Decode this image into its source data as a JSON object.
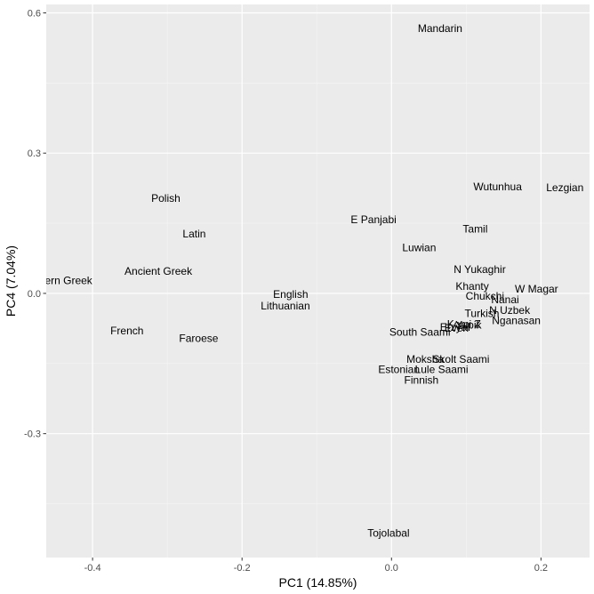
{
  "chart_data": {
    "type": "scatter",
    "xlabel": "PC1 (14.85%)",
    "ylabel": "PC4 (7.04%)",
    "xlim": [
      -0.462,
      0.265
    ],
    "ylim": [
      -0.565,
      0.618
    ],
    "xticks": [
      -0.4,
      -0.2,
      0.0,
      0.2
    ],
    "xtick_labels": [
      "-0.4",
      "-0.2",
      "0.0",
      "0.2"
    ],
    "yticks": [
      -0.3,
      0.0,
      0.3,
      0.6
    ],
    "ytick_labels": [
      "-0.3",
      "0.0",
      "0.3",
      "0.6"
    ],
    "grid": true,
    "points": [
      {
        "label": "Mandarin",
        "x": 0.065,
        "y": 0.567
      },
      {
        "label": "Wutunhua",
        "x": 0.142,
        "y": 0.228
      },
      {
        "label": "Lezgian",
        "x": 0.232,
        "y": 0.226
      },
      {
        "label": "Polish",
        "x": -0.302,
        "y": 0.203
      },
      {
        "label": "E Panjabi",
        "x": -0.024,
        "y": 0.158
      },
      {
        "label": "Latin",
        "x": -0.264,
        "y": 0.127
      },
      {
        "label": "Tamil",
        "x": 0.112,
        "y": 0.138
      },
      {
        "label": "Luwian",
        "x": 0.037,
        "y": 0.098
      },
      {
        "label": "N Yukaghir",
        "x": 0.118,
        "y": 0.051
      },
      {
        "label": "Ancient Greek",
        "x": -0.312,
        "y": 0.047
      },
      {
        "label": "Modern Greek",
        "x": -0.446,
        "y": 0.027
      },
      {
        "label": "Khanty",
        "x": 0.108,
        "y": 0.015
      },
      {
        "label": "W Magar",
        "x": 0.194,
        "y": 0.009
      },
      {
        "label": "English",
        "x": -0.135,
        "y": -0.002
      },
      {
        "label": "Chukchi",
        "x": 0.125,
        "y": -0.006
      },
      {
        "label": "Nanai",
        "x": 0.152,
        "y": -0.013
      },
      {
        "label": "Lithuanian",
        "x": -0.142,
        "y": -0.027
      },
      {
        "label": "N Uzbek",
        "x": 0.158,
        "y": -0.036
      },
      {
        "label": "Turkish",
        "x": 0.121,
        "y": -0.043
      },
      {
        "label": "Nganasan",
        "x": 0.167,
        "y": -0.058
      },
      {
        "label": "Komi Z",
        "x": 0.097,
        "y": -0.066
      },
      {
        "label": "Yupik",
        "x": 0.103,
        "y": -0.068
      },
      {
        "label": "Erzya",
        "x": 0.083,
        "y": -0.072
      },
      {
        "label": "Even",
        "x": 0.087,
        "y": -0.074
      },
      {
        "label": "French",
        "x": -0.354,
        "y": -0.08
      },
      {
        "label": "South Saami",
        "x": 0.038,
        "y": -0.083
      },
      {
        "label": "Faroese",
        "x": -0.258,
        "y": -0.096
      },
      {
        "label": "Moksha",
        "x": 0.045,
        "y": -0.141
      },
      {
        "label": "Skolt Saami",
        "x": 0.093,
        "y": -0.141
      },
      {
        "label": "Estonian",
        "x": 0.01,
        "y": -0.163
      },
      {
        "label": "Lule Saami",
        "x": 0.067,
        "y": -0.163
      },
      {
        "label": "Finnish",
        "x": 0.04,
        "y": -0.186
      },
      {
        "label": "Tojolabal",
        "x": -0.004,
        "y": -0.513
      }
    ]
  }
}
